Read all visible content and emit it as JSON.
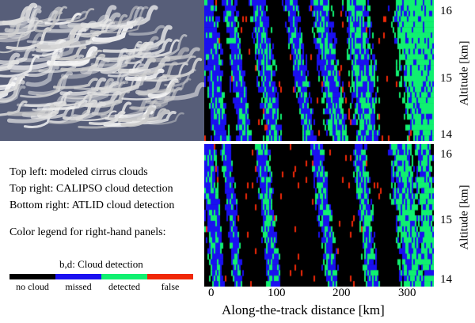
{
  "captions": {
    "line1": "Top left: modeled cirrus clouds",
    "line2": "Top right: CALIPSO cloud detection",
    "line3": "Bottom right: ATLID cloud detection",
    "line4": "Color legend for right-hand panels:"
  },
  "legend": {
    "title": "b,d: Cloud detection",
    "items": [
      {
        "label": "no cloud",
        "color": "#000000"
      },
      {
        "label": "missed",
        "color": "#1a10f0"
      },
      {
        "label": "detected",
        "color": "#10f070"
      },
      {
        "label": "false",
        "color": "#f02808"
      }
    ]
  },
  "chart_data": [
    {
      "type": "heatmap",
      "title": "CALIPSO cloud detection",
      "xlabel": "Along-the-track distance [km]",
      "ylabel": "Altitude [km]",
      "xlim": [
        -12,
        343
      ],
      "ylim": [
        13.9,
        16.2
      ],
      "yticks": [
        "14",
        "15",
        "16"
      ],
      "categories": [
        "no cloud",
        "missed",
        "detected",
        "false"
      ]
    },
    {
      "type": "heatmap",
      "title": "ATLID cloud detection",
      "xlabel": "Along-the-track distance [km]",
      "ylabel": "Altitude [km]",
      "xlim": [
        -12,
        343
      ],
      "ylim": [
        13.9,
        16.1
      ],
      "xticks": [
        "0",
        "100",
        "200",
        "300"
      ],
      "yticks": [
        "14",
        "15",
        "16"
      ],
      "categories": [
        "no cloud",
        "missed",
        "detected",
        "false"
      ]
    }
  ]
}
